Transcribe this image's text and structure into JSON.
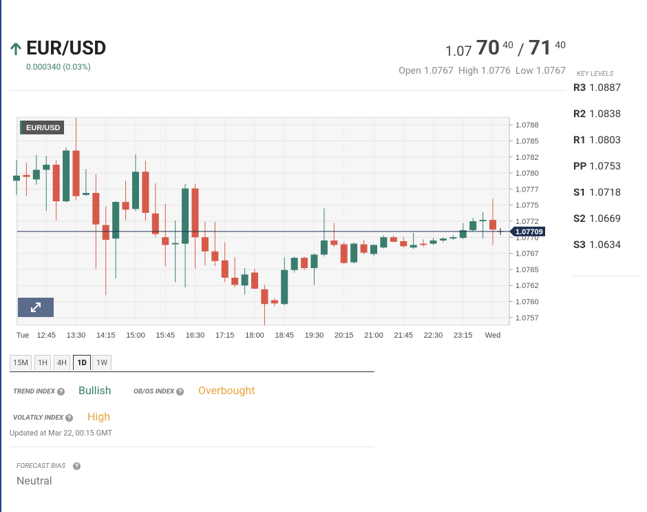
{
  "header": {
    "symbol": "EUR/USD",
    "change": "0.000340 (0.03%)",
    "bid": {
      "prefix": "1.07",
      "pips": "70",
      "fraction": "40"
    },
    "separator": "/",
    "ask": {
      "pips": "71",
      "fraction": "40"
    },
    "stats": [
      {
        "label": "Open",
        "value": "1.0767"
      },
      {
        "label": "High",
        "value": "1.0776"
      },
      {
        "label": "Low",
        "value": "1.0767"
      }
    ]
  },
  "key_levels": {
    "title": "KEY LEVELS",
    "levels": [
      {
        "name": "R3",
        "value": "1.0887"
      },
      {
        "name": "R2",
        "value": "1.0838"
      },
      {
        "name": "R1",
        "value": "1.0803"
      },
      {
        "name": "PP",
        "value": "1.0753"
      },
      {
        "name": "S1",
        "value": "1.0718"
      },
      {
        "name": "S2",
        "value": "1.0669"
      },
      {
        "name": "S3",
        "value": "1.0634"
      }
    ]
  },
  "chart_data": {
    "type": "candlestick",
    "label": "EUR/USD",
    "up_color": "#3a7d6e",
    "down_color": "#d65a4a",
    "grid": true,
    "categories": [
      "Tue",
      null,
      null,
      "12:45",
      null,
      null,
      "13:30",
      null,
      null,
      "14:15",
      null,
      null,
      "15:00",
      null,
      null,
      "15:45",
      null,
      null,
      "16:30",
      null,
      null,
      "17:15",
      null,
      null,
      "18:00",
      null,
      null,
      "18:45",
      null,
      null,
      "19:30",
      null,
      null,
      "20:15",
      null,
      null,
      "21:00",
      null,
      null,
      "21:45",
      null,
      null,
      "22:30",
      null,
      null,
      "23:15",
      null,
      null,
      "Wed"
    ],
    "open": [
      1.07788,
      1.07797,
      1.0779,
      1.07805,
      1.07813,
      1.07756,
      1.07835,
      1.07766,
      1.07769,
      1.07719,
      1.07698,
      1.07755,
      1.07744,
      1.07802,
      1.07737,
      1.077,
      1.07689,
      1.0769,
      1.07776,
      1.077,
      1.07678,
      1.07664,
      1.07637,
      1.07625,
      1.07645,
      1.07619,
      1.07602,
      1.07596,
      1.07649,
      1.07668,
      1.07652,
      1.07673,
      1.07695,
      1.07689,
      1.07661,
      1.07689,
      1.07674,
      1.07684,
      1.077,
      1.07694,
      1.07684,
      1.0769,
      1.0769,
      1.07695,
      1.07698,
      1.07699,
      1.07711,
      1.07725,
      1.07727
    ],
    "high": [
      1.0782,
      1.07816,
      1.07828,
      1.07827,
      1.0782,
      1.0784,
      1.07886,
      1.07806,
      1.07798,
      1.07748,
      1.07756,
      1.07788,
      1.07829,
      1.07819,
      1.07784,
      1.07752,
      1.07726,
      1.07783,
      1.07783,
      1.07724,
      1.07724,
      1.07692,
      1.07669,
      1.07652,
      1.07651,
      1.07626,
      1.07605,
      1.07669,
      1.0767,
      1.0767,
      1.07675,
      1.07745,
      1.07722,
      1.07692,
      1.07692,
      1.07696,
      1.07689,
      1.07703,
      1.07703,
      1.077,
      1.07707,
      1.07697,
      1.07699,
      1.077,
      1.07703,
      1.07722,
      1.0773,
      1.07739,
      1.0776
    ],
    "low": [
      1.07766,
      1.07764,
      1.07782,
      1.07741,
      1.07726,
      1.07754,
      1.07758,
      1.07764,
      1.07651,
      1.0761,
      1.07636,
      1.07726,
      1.07741,
      1.07726,
      1.07701,
      1.07655,
      1.0763,
      1.07622,
      1.07651,
      1.07656,
      1.07655,
      1.0763,
      1.07622,
      1.07611,
      1.07619,
      1.07563,
      1.07593,
      1.07594,
      1.07645,
      1.07649,
      1.07626,
      1.0767,
      1.07685,
      1.07658,
      1.07659,
      1.07673,
      1.07671,
      1.07683,
      1.07692,
      1.07684,
      1.07682,
      1.07685,
      1.07688,
      1.07692,
      1.07696,
      1.07697,
      1.07709,
      1.07698,
      1.07688
    ],
    "close": [
      1.07796,
      1.07794,
      1.07805,
      1.07813,
      1.07756,
      1.07835,
      1.07764,
      1.07769,
      1.0772,
      1.07696,
      1.07755,
      1.07743,
      1.07802,
      1.07738,
      1.07705,
      1.07688,
      1.07691,
      1.07776,
      1.077,
      1.07678,
      1.07663,
      1.07637,
      1.07626,
      1.07642,
      1.0762,
      1.07596,
      1.07597,
      1.07649,
      1.07668,
      1.07652,
      1.07673,
      1.07695,
      1.07688,
      1.0766,
      1.0769,
      1.07676,
      1.07688,
      1.077,
      1.07693,
      1.07686,
      1.07688,
      1.07688,
      1.07695,
      1.07698,
      1.077,
      1.07711,
      1.07725,
      1.07727,
      1.07712
    ],
    "last_price": 1.07709,
    "ylim": [
      1.07563,
      1.07887
    ],
    "yticks": [
      {
        "value": 1.07875,
        "label": "1.0788"
      },
      1.0785,
      {
        "value": 1.07825,
        "label": "1.0782"
      },
      {
        "value": 1.078,
        "label": "1.0780"
      },
      {
        "value": 1.07775,
        "label": "1.0777"
      },
      1.0775,
      {
        "value": 1.07725,
        "label": "1.0772"
      },
      {
        "value": 1.077,
        "label": "1.0770"
      },
      {
        "value": 1.07675,
        "label": "1.0767"
      },
      1.0765,
      {
        "value": 1.07625,
        "label": "1.0762"
      },
      {
        "value": 1.076,
        "label": "1.0760"
      },
      {
        "value": 1.07575,
        "label": "1.0757"
      }
    ]
  },
  "timeframes": {
    "options": [
      "15M",
      "1H",
      "4H",
      "1D",
      "1W"
    ],
    "active": "1D"
  },
  "indices": [
    {
      "label": "TREND INDEX",
      "value": "Bullish",
      "color": "#3a7d6e"
    },
    {
      "label": "OB/OS INDEX",
      "value": "Overbought",
      "color": "#e8a33d"
    },
    {
      "label": "VOLATILY INDEX",
      "value": "High",
      "color": "#e8a33d"
    }
  ],
  "updated": "Updated at Mar 22, 00:15 GMT",
  "forecast_bias": {
    "label": "FORECAST BIAS",
    "value": "Neutral"
  }
}
